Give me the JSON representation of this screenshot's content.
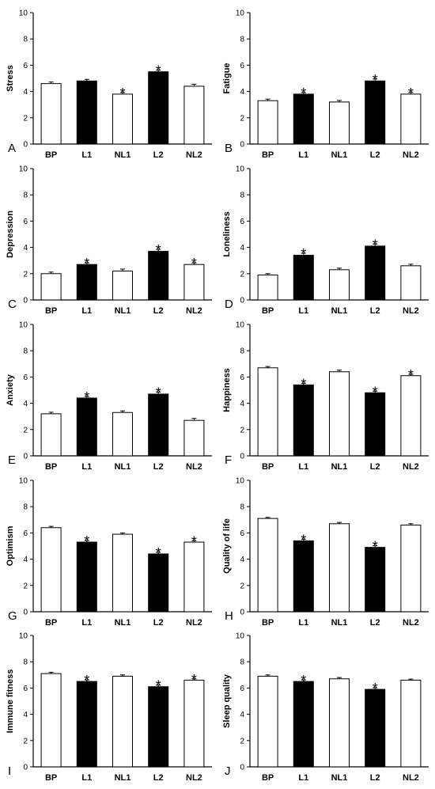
{
  "colors": {
    "filled": "#000000",
    "open": "#ffffff",
    "stroke": "#000000"
  },
  "chart_data": [
    {
      "type": "bar",
      "panel": "A",
      "ylabel": "Stress",
      "ylim": [
        0,
        10
      ],
      "yticks": [
        0,
        2,
        4,
        6,
        8,
        10
      ],
      "categories": [
        "BP",
        "L1",
        "NL1",
        "L2",
        "NL2"
      ],
      "values": [
        4.6,
        4.8,
        3.8,
        5.5,
        4.4
      ],
      "errors": [
        0.12,
        0.12,
        0.12,
        0.12,
        0.15
      ],
      "filled": [
        false,
        true,
        false,
        true,
        false
      ],
      "significant": [
        false,
        false,
        true,
        true,
        false
      ]
    },
    {
      "type": "bar",
      "panel": "B",
      "ylabel": "Fatigue",
      "ylim": [
        0,
        10
      ],
      "yticks": [
        0,
        2,
        4,
        6,
        8,
        10
      ],
      "categories": [
        "BP",
        "L1",
        "NL1",
        "L2",
        "NL2"
      ],
      "values": [
        3.3,
        3.8,
        3.2,
        4.8,
        3.8
      ],
      "errors": [
        0.12,
        0.12,
        0.12,
        0.15,
        0.12
      ],
      "filled": [
        false,
        true,
        false,
        true,
        false
      ],
      "significant": [
        false,
        true,
        false,
        true,
        true
      ]
    },
    {
      "type": "bar",
      "panel": "C",
      "ylabel": "Depression",
      "ylim": [
        0,
        10
      ],
      "yticks": [
        0,
        2,
        4,
        6,
        8,
        10
      ],
      "categories": [
        "BP",
        "L1",
        "NL1",
        "L2",
        "NL2"
      ],
      "values": [
        2.0,
        2.7,
        2.2,
        3.7,
        2.7
      ],
      "errors": [
        0.12,
        0.12,
        0.15,
        0.15,
        0.12
      ],
      "filled": [
        false,
        true,
        false,
        true,
        false
      ],
      "significant": [
        false,
        true,
        false,
        true,
        true
      ]
    },
    {
      "type": "bar",
      "panel": "D",
      "ylabel": "Loneliness",
      "ylim": [
        0,
        10
      ],
      "yticks": [
        0,
        2,
        4,
        6,
        8,
        10
      ],
      "categories": [
        "BP",
        "L1",
        "NL1",
        "L2",
        "NL2"
      ],
      "values": [
        1.9,
        3.4,
        2.3,
        4.1,
        2.6
      ],
      "errors": [
        0.1,
        0.15,
        0.12,
        0.15,
        0.12
      ],
      "filled": [
        false,
        true,
        false,
        true,
        false
      ],
      "significant": [
        false,
        true,
        false,
        true,
        false
      ]
    },
    {
      "type": "bar",
      "panel": "E",
      "ylabel": "Anxiety",
      "ylim": [
        0,
        10
      ],
      "yticks": [
        0,
        2,
        4,
        6,
        8,
        10
      ],
      "categories": [
        "BP",
        "L1",
        "NL1",
        "L2",
        "NL2"
      ],
      "values": [
        3.2,
        4.4,
        3.3,
        4.7,
        2.7
      ],
      "errors": [
        0.12,
        0.12,
        0.12,
        0.15,
        0.15
      ],
      "filled": [
        false,
        true,
        false,
        true,
        false
      ],
      "significant": [
        false,
        true,
        false,
        true,
        false
      ]
    },
    {
      "type": "bar",
      "panel": "F",
      "ylabel": "Happiness",
      "ylim": [
        0,
        10
      ],
      "yticks": [
        0,
        2,
        4,
        6,
        8,
        10
      ],
      "categories": [
        "BP",
        "L1",
        "NL1",
        "L2",
        "NL2"
      ],
      "values": [
        6.7,
        5.4,
        6.4,
        4.8,
        6.1
      ],
      "errors": [
        0.1,
        0.12,
        0.12,
        0.12,
        0.1
      ],
      "filled": [
        false,
        true,
        false,
        true,
        false
      ],
      "significant": [
        false,
        true,
        false,
        true,
        true
      ]
    },
    {
      "type": "bar",
      "panel": "G",
      "ylabel": "Optimism",
      "ylim": [
        0,
        10
      ],
      "yticks": [
        0,
        2,
        4,
        6,
        8,
        10
      ],
      "categories": [
        "BP",
        "L1",
        "NL1",
        "L2",
        "NL2"
      ],
      "values": [
        6.4,
        5.3,
        5.9,
        4.4,
        5.3
      ],
      "errors": [
        0.1,
        0.12,
        0.1,
        0.12,
        0.1
      ],
      "filled": [
        false,
        true,
        false,
        true,
        false
      ],
      "significant": [
        false,
        true,
        false,
        true,
        true
      ]
    },
    {
      "type": "bar",
      "panel": "H",
      "ylabel": "Quality of life",
      "ylim": [
        0,
        10
      ],
      "yticks": [
        0,
        2,
        4,
        6,
        8,
        10
      ],
      "categories": [
        "BP",
        "L1",
        "NL1",
        "L2",
        "NL2"
      ],
      "values": [
        7.1,
        5.4,
        6.7,
        4.9,
        6.6
      ],
      "errors": [
        0.08,
        0.12,
        0.1,
        0.12,
        0.1
      ],
      "filled": [
        false,
        true,
        false,
        true,
        false
      ],
      "significant": [
        false,
        true,
        false,
        true,
        false
      ]
    },
    {
      "type": "bar",
      "panel": "I",
      "ylabel": "Immune fitness",
      "ylim": [
        0,
        10
      ],
      "yticks": [
        0,
        2,
        4,
        6,
        8,
        10
      ],
      "categories": [
        "BP",
        "L1",
        "NL1",
        "L2",
        "NL2"
      ],
      "values": [
        7.1,
        6.5,
        6.9,
        6.1,
        6.6
      ],
      "errors": [
        0.1,
        0.12,
        0.1,
        0.12,
        0.1
      ],
      "filled": [
        false,
        true,
        false,
        true,
        false
      ],
      "significant": [
        false,
        true,
        false,
        true,
        true
      ]
    },
    {
      "type": "bar",
      "panel": "J",
      "ylabel": "Sleep quality",
      "ylim": [
        0,
        10
      ],
      "yticks": [
        0,
        2,
        4,
        6,
        8,
        10
      ],
      "categories": [
        "BP",
        "L1",
        "NL1",
        "L2",
        "NL2"
      ],
      "values": [
        6.9,
        6.5,
        6.7,
        5.9,
        6.6
      ],
      "errors": [
        0.1,
        0.12,
        0.1,
        0.12,
        0.08
      ],
      "filled": [
        false,
        true,
        false,
        true,
        false
      ],
      "significant": [
        false,
        true,
        false,
        true,
        false
      ]
    }
  ]
}
